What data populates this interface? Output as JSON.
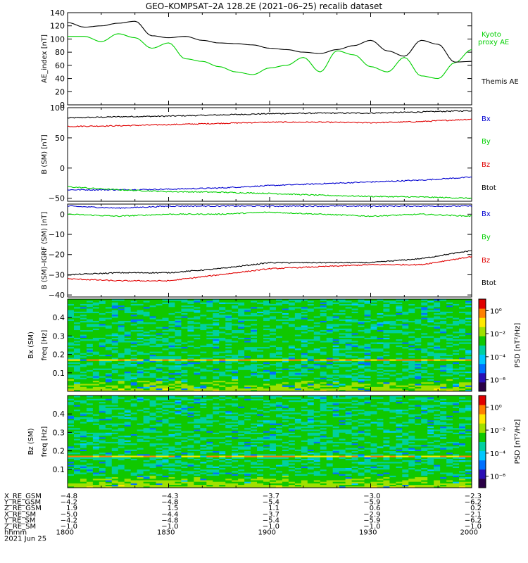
{
  "title": "GEO–KOMPSAT–2A 128.2E (2021–06–25) recalib dataset",
  "colors": {
    "black": "#000000",
    "red": "#e00000",
    "green": "#00d000",
    "blue": "#0000d0",
    "colorbar": [
      "#2a0046",
      "#2a0fb4",
      "#0070ff",
      "#00c8ff",
      "#00d0a0",
      "#10c800",
      "#a0e000",
      "#ffe800",
      "#ff8000",
      "#e00000"
    ]
  },
  "chart_data": [
    {
      "type": "line",
      "ylabel": "AE_index [nT]",
      "ylim": [
        0,
        140
      ],
      "yticks": [
        "0",
        "20",
        "40",
        "60",
        "80",
        "100",
        "120",
        "140"
      ],
      "x": [
        1800,
        1805,
        1810,
        1815,
        1820,
        1825,
        1830,
        1835,
        1840,
        1845,
        1850,
        1855,
        1900,
        1905,
        1910,
        1915,
        1920,
        1925,
        1930,
        1935,
        1940,
        1945,
        1950,
        1955,
        2000
      ],
      "series": [
        {
          "name": "Kyoto proxy AE",
          "color": "green",
          "values": [
            104,
            104,
            96,
            108,
            102,
            86,
            94,
            70,
            66,
            58,
            50,
            46,
            56,
            60,
            72,
            50,
            82,
            76,
            58,
            50,
            72,
            44,
            40,
            64,
            84
          ]
        },
        {
          "name": "Themis AE",
          "color": "black",
          "values": [
            125,
            118,
            120,
            124,
            127,
            105,
            102,
            104,
            98,
            94,
            93,
            91,
            86,
            84,
            80,
            78,
            84,
            90,
            98,
            82,
            74,
            98,
            92,
            65,
            66
          ]
        }
      ],
      "legend": [
        "Kyoto proxy AE",
        "Themis AE"
      ]
    },
    {
      "type": "line",
      "ylabel": "B (SM) [nT]",
      "ylim": [
        -55,
        100
      ],
      "yticks": [
        "−50",
        "0",
        "50",
        "100"
      ],
      "x": [
        1800,
        1815,
        1830,
        1845,
        1900,
        1915,
        1930,
        1945,
        2000
      ],
      "series": [
        {
          "name": "Btot",
          "color": "black",
          "values": [
            83,
            85,
            86,
            88,
            90,
            91,
            91,
            93,
            95
          ]
        },
        {
          "name": "Bz",
          "color": "red",
          "values": [
            69,
            70,
            72,
            74,
            76,
            76,
            75,
            77,
            81
          ]
        },
        {
          "name": "Bx",
          "color": "blue",
          "values": [
            -36,
            -36,
            -35,
            -33,
            -29,
            -26,
            -23,
            -20,
            -15
          ]
        },
        {
          "name": "By",
          "color": "green",
          "values": [
            -31,
            -36,
            -39,
            -40,
            -42,
            -45,
            -47,
            -48,
            -50
          ]
        }
      ],
      "legend": [
        "Bx",
        "By",
        "Bz",
        "Btot"
      ]
    },
    {
      "type": "line",
      "ylabel": "B (SM)–IGRF (SM) [nT]",
      "ylim": [
        -41,
        5
      ],
      "yticks": [
        "−40",
        "−30",
        "−20",
        "−10",
        "0"
      ],
      "x": [
        1800,
        1815,
        1830,
        1845,
        1900,
        1915,
        1930,
        1945,
        2000
      ],
      "series": [
        {
          "name": "Bx",
          "color": "blue",
          "values": [
            4,
            3,
            4,
            4,
            4,
            4,
            4,
            4,
            4
          ]
        },
        {
          "name": "By",
          "color": "green",
          "values": [
            0,
            -1,
            0,
            0,
            1,
            0,
            -1,
            0,
            -1
          ]
        },
        {
          "name": "Btot",
          "color": "black",
          "values": [
            -30,
            -29,
            -29,
            -27,
            -24,
            -24,
            -24,
            -22,
            -18
          ]
        },
        {
          "name": "Bz",
          "color": "red",
          "values": [
            -32,
            -33,
            -33,
            -30,
            -27,
            -26,
            -25,
            -25,
            -21
          ]
        }
      ],
      "legend": [
        "Bx",
        "By",
        "Bz",
        "Btot"
      ]
    },
    {
      "type": "heatmap",
      "ylabel": "Bx (SM) freq [Hz]",
      "ylim": [
        0,
        0.5
      ],
      "yticks": [
        "0.1",
        "0.2",
        "0.3",
        "0.4"
      ],
      "colorbar": {
        "label": "PSD [nT²/Hz]",
        "ticks": [
          "10⁰",
          "10⁻²",
          "10⁻⁴",
          "10⁻⁶"
        ],
        "range_log": [
          -7,
          1
        ]
      }
    },
    {
      "type": "heatmap",
      "ylabel": "Bz (SM) freq [Hz]",
      "ylim": [
        0,
        0.5
      ],
      "yticks": [
        "0.1",
        "0.2",
        "0.3",
        "0.4"
      ],
      "colorbar": {
        "label": "PSD [nT²/Hz]",
        "ticks": [
          "10⁰",
          "10⁻²",
          "10⁻⁴",
          "10⁻⁶"
        ],
        "range_log": [
          -7,
          1
        ]
      }
    }
  ],
  "ephemeris": {
    "rows": [
      {
        "label": "X_RE_GSM",
        "values": [
          "−4.8",
          "−4.3",
          "−3.7",
          "−3.0",
          "−2.3"
        ]
      },
      {
        "label": "Y_RE_GSM",
        "values": [
          "−4.2",
          "−4.8",
          "−5.4",
          "−5.9",
          "−6.2"
        ]
      },
      {
        "label": "Z_RE_GSM",
        "values": [
          "1.9",
          "1.5",
          "1.1",
          "0.6",
          "0.2"
        ]
      },
      {
        "label": "X_RE_SM",
        "values": [
          "−5.0",
          "−4.4",
          "−3.7",
          "−2.9",
          "−2.1"
        ]
      },
      {
        "label": "Y_RE_SM",
        "values": [
          "−4.2",
          "−4.8",
          "−5.4",
          "−5.9",
          "−6.2"
        ]
      },
      {
        "label": "Z_RE_SM",
        "values": [
          "−1.0",
          "−1.0",
          "−1.0",
          "−1.0",
          "−1.0"
        ]
      }
    ],
    "time_label": "hhmm",
    "times": [
      "1800",
      "1830",
      "1900",
      "1930",
      "2000"
    ],
    "date": "2021 Jun 25"
  }
}
